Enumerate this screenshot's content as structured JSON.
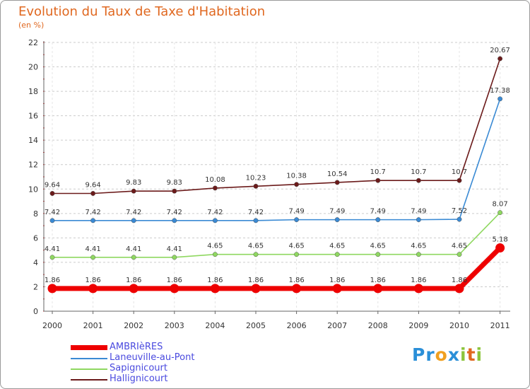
{
  "title": "Evolution du Taux de Taxe d'Habitation",
  "subtitle": "(en %)",
  "logo": [
    "P",
    "r",
    "o",
    "x",
    "i",
    "t",
    "i"
  ],
  "chart_data": {
    "type": "line",
    "title": "Evolution du Taux de Taxe d'Habitation",
    "ylabel": "(en %)",
    "xlabel": "",
    "ylim": [
      0,
      22
    ],
    "yticks": [
      "0",
      "2",
      "4",
      "6",
      "8",
      "10",
      "12",
      "14",
      "16",
      "18",
      "20",
      "22"
    ],
    "categories": [
      "2000",
      "2001",
      "2002",
      "2003",
      "2004",
      "2005",
      "2006",
      "2007",
      "2008",
      "2009",
      "2010",
      "2011"
    ],
    "series": [
      {
        "name": "Hallignicourt",
        "color": "#6b1a1a",
        "values": [
          9.64,
          9.64,
          9.83,
          9.83,
          10.08,
          10.23,
          10.38,
          10.54,
          10.7,
          10.7,
          10.7,
          20.67
        ],
        "labels": [
          "9.64",
          "9.64",
          "9.83",
          "9.83",
          "10.08",
          "10.23",
          "10.38",
          "10.54",
          "10.7",
          "10.7",
          "10.7",
          "20.67"
        ]
      },
      {
        "name": "Laneuville-au-Pont",
        "color": "#3a8ad4",
        "values": [
          7.42,
          7.42,
          7.42,
          7.42,
          7.42,
          7.42,
          7.49,
          7.49,
          7.49,
          7.49,
          7.52,
          17.38
        ],
        "labels": [
          "7.42",
          "7.42",
          "7.42",
          "7.42",
          "7.42",
          "7.42",
          "7.49",
          "7.49",
          "7.49",
          "7.49",
          "7.52",
          "17.38"
        ]
      },
      {
        "name": "Sapignicourt",
        "color": "#8fd860",
        "values": [
          4.41,
          4.41,
          4.41,
          4.41,
          4.65,
          4.65,
          4.65,
          4.65,
          4.65,
          4.65,
          4.65,
          8.07
        ],
        "labels": [
          "4.41",
          "4.41",
          "4.41",
          "4.41",
          "4.65",
          "4.65",
          "4.65",
          "4.65",
          "4.65",
          "4.65",
          "4.65",
          "8.07"
        ]
      },
      {
        "name": "AMBRIèRES",
        "color": "#ee0000",
        "values": [
          1.86,
          1.86,
          1.86,
          1.86,
          1.86,
          1.86,
          1.86,
          1.86,
          1.86,
          1.86,
          1.86,
          5.18
        ],
        "labels": [
          "1.86",
          "1.86",
          "1.86",
          "1.86",
          "1.86",
          "1.86",
          "1.86",
          "1.86",
          "1.86",
          "1.86",
          "1.86",
          "5.18"
        ]
      }
    ],
    "legend": [
      {
        "name": "AMBRIèRES",
        "color": "#ee0000"
      },
      {
        "name": "Laneuville-au-Pont",
        "color": "#3a8ad4"
      },
      {
        "name": "Sapignicourt",
        "color": "#8fd860"
      },
      {
        "name": "Hallignicourt",
        "color": "#6b1a1a"
      }
    ]
  }
}
